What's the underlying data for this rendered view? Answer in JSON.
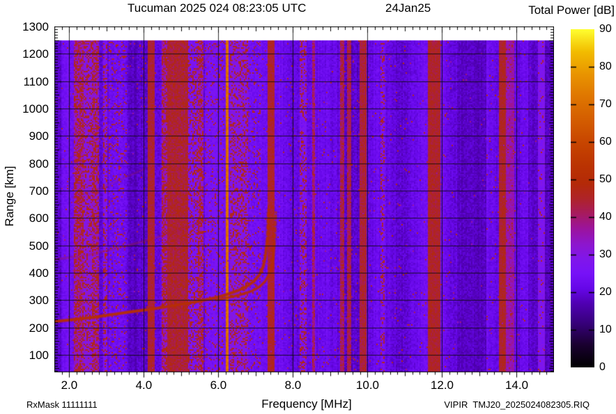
{
  "header": {
    "title": "Tucuman 2025 024 08:23:05 UTC",
    "date": "24Jan25"
  },
  "footer": {
    "rx_mask": "RxMask 11111111",
    "file_id": "VIPIR  TMJ20_2025024082305.RIQ"
  },
  "chart_data": {
    "type": "heatmap",
    "title": "Tucuman 2025 024 08:23:05 UTC",
    "date_annotation": "24Jan25",
    "xlabel": "Frequency [MHz]",
    "ylabel": "Range [km]",
    "x_range_mhz": [
      1.6,
      15.0
    ],
    "y_range_km": [
      36,
      1300
    ],
    "data_max_range_km": 1250,
    "grid": true,
    "x_major_ticks": [
      2,
      4,
      6,
      8,
      10,
      12,
      14
    ],
    "x_tick_labels": [
      "2.0",
      "4.0",
      "6.0",
      "8.0",
      "10.0",
      "12.0",
      "14.0"
    ],
    "x_minor_step_mhz": 0.2,
    "y_major_ticks": [
      100,
      200,
      300,
      400,
      500,
      600,
      700,
      800,
      900,
      1000,
      1100,
      1200,
      1300
    ],
    "y_tick_labels": [
      "100",
      "200",
      "300",
      "400",
      "500",
      "600",
      "700",
      "800",
      "900",
      "1000",
      "1100",
      "1200",
      "1300"
    ],
    "y_minor_step_km": 10,
    "background_noise_db": {
      "base": 21.5,
      "jitter": 2.2
    },
    "colorbar": {
      "title": "Total Power [dB]",
      "min": 0,
      "max": 90,
      "tick_step": 10,
      "tick_values": [
        0,
        10,
        20,
        30,
        40,
        50,
        60,
        70,
        80,
        90
      ],
      "stops": [
        [
          0,
          "#000000"
        ],
        [
          6,
          "#1a0030"
        ],
        [
          12,
          "#38007e"
        ],
        [
          17,
          "#5000b2"
        ],
        [
          21,
          "#6607e8"
        ],
        [
          25,
          "#7712f8"
        ],
        [
          29,
          "#8117ea"
        ],
        [
          33,
          "#8e16cc"
        ],
        [
          37,
          "#9c149c"
        ],
        [
          41,
          "#a71b5e"
        ],
        [
          45,
          "#af2428"
        ],
        [
          49,
          "#b42a08"
        ],
        [
          54,
          "#bb3402"
        ],
        [
          60,
          "#c84600"
        ],
        [
          66,
          "#d45e00"
        ],
        [
          72,
          "#df7600"
        ],
        [
          78,
          "#e99400"
        ],
        [
          84,
          "#f2bc00"
        ],
        [
          90,
          "#ffff30"
        ]
      ]
    },
    "rfi_bands": [
      {
        "f0": 1.6,
        "f1": 1.78,
        "level_db": 19,
        "style": "dark"
      },
      {
        "f0": 2.14,
        "f1": 2.38,
        "level_db": 42,
        "style": "speckle_strong"
      },
      {
        "f0": 2.38,
        "f1": 2.6,
        "level_db": 36,
        "style": "speckle"
      },
      {
        "f0": 2.6,
        "f1": 2.78,
        "level_db": 41,
        "style": "speckle_strong"
      },
      {
        "f0": 2.9,
        "f1": 3.02,
        "level_db": 33,
        "style": "speckle"
      },
      {
        "f0": 3.05,
        "f1": 3.55,
        "level_db": 27,
        "style": "speckle_light"
      },
      {
        "f0": 3.58,
        "f1": 3.82,
        "level_db": 18,
        "style": "dark"
      },
      {
        "f0": 4.1,
        "f1": 4.28,
        "level_db": 45,
        "style": "solid"
      },
      {
        "f0": 4.46,
        "f1": 4.64,
        "level_db": 42,
        "style": "speckle_strong"
      },
      {
        "f0": 4.64,
        "f1": 5.2,
        "level_db": 45,
        "style": "solid_speckle"
      },
      {
        "f0": 5.2,
        "f1": 5.44,
        "level_db": 32,
        "style": "speckle"
      },
      {
        "f0": 5.46,
        "f1": 5.6,
        "level_db": 41,
        "style": "speckle_strong"
      },
      {
        "f0": 5.62,
        "f1": 6.16,
        "level_db": 29,
        "style": "speckle_light"
      },
      {
        "f0": 6.2,
        "f1": 6.27,
        "level_db": 70,
        "style": "line"
      },
      {
        "f0": 6.3,
        "f1": 6.78,
        "level_db": 35,
        "style": "speckle"
      },
      {
        "f0": 6.78,
        "f1": 7.12,
        "level_db": 28,
        "style": "speckle_light"
      },
      {
        "f0": 7.32,
        "f1": 7.5,
        "level_db": 45,
        "style": "solid"
      },
      {
        "f0": 8.18,
        "f1": 8.36,
        "level_db": 32,
        "style": "speckle"
      },
      {
        "f0": 8.5,
        "f1": 8.58,
        "level_db": 38,
        "style": "narrow"
      },
      {
        "f0": 9.26,
        "f1": 9.36,
        "level_db": 41,
        "style": "narrow"
      },
      {
        "f0": 9.46,
        "f1": 9.56,
        "level_db": 41,
        "style": "narrow"
      },
      {
        "f0": 9.78,
        "f1": 9.96,
        "level_db": 44,
        "style": "solid"
      },
      {
        "f0": 10.34,
        "f1": 10.46,
        "level_db": 31,
        "style": "speckle"
      },
      {
        "f0": 11.62,
        "f1": 11.96,
        "level_db": 45,
        "style": "solid"
      },
      {
        "f0": 12.4,
        "f1": 13.18,
        "level_db": 18,
        "style": "dark"
      },
      {
        "f0": 13.52,
        "f1": 13.7,
        "level_db": 45,
        "style": "solid"
      },
      {
        "f0": 13.7,
        "f1": 13.92,
        "level_db": 36,
        "style": "magenta"
      },
      {
        "f0": 14.3,
        "f1": 14.58,
        "level_db": 19,
        "style": "dark"
      },
      {
        "f0": 14.58,
        "f1": 14.76,
        "level_db": 28,
        "style": "band"
      },
      {
        "f0": 14.76,
        "f1": 15.0,
        "level_db": 18,
        "style": "dark"
      }
    ],
    "traces": {
      "o_mode": {
        "level_db": 51,
        "width": 3.4,
        "alpha": 0.95,
        "points": [
          [
            1.6,
            221
          ],
          [
            2.0,
            227
          ],
          [
            2.4,
            233
          ],
          [
            2.8,
            240
          ],
          [
            3.2,
            248
          ],
          [
            3.6,
            256
          ],
          [
            4.0,
            263
          ],
          [
            4.4,
            271
          ],
          [
            4.8,
            280
          ],
          [
            5.2,
            289
          ],
          [
            5.6,
            299
          ],
          [
            5.9,
            308
          ],
          [
            6.2,
            319
          ],
          [
            6.5,
            333
          ],
          [
            6.75,
            349
          ],
          [
            6.95,
            368
          ],
          [
            7.1,
            392
          ],
          [
            7.2,
            422
          ],
          [
            7.26,
            458
          ],
          [
            7.295,
            500
          ],
          [
            7.31,
            515
          ]
        ],
        "dashed_tail": [
          [
            7.31,
            515
          ],
          [
            7.325,
            560
          ],
          [
            7.335,
            600
          ],
          [
            7.345,
            630
          ]
        ]
      },
      "x_mode": {
        "level_db": 51,
        "width": 2.8,
        "alpha": 0.9,
        "points": [
          [
            5.95,
            300
          ],
          [
            6.3,
            310
          ],
          [
            6.6,
            320
          ],
          [
            6.9,
            333
          ],
          [
            7.1,
            348
          ],
          [
            7.25,
            368
          ],
          [
            7.37,
            395
          ],
          [
            7.44,
            428
          ],
          [
            7.48,
            465
          ],
          [
            7.5,
            505
          ]
        ],
        "dashed_tail": [
          [
            7.5,
            505
          ],
          [
            7.52,
            550
          ],
          [
            7.53,
            590
          ],
          [
            7.54,
            620
          ]
        ]
      },
      "second_hop": {
        "level_db": 44,
        "width": 2.6,
        "alpha": 0.28,
        "points": [
          [
            1.6,
            448
          ],
          [
            2.4,
            462
          ],
          [
            3.2,
            486
          ],
          [
            4.0,
            515
          ],
          [
            4.8,
            548
          ],
          [
            5.3,
            572
          ],
          [
            5.7,
            596
          ]
        ]
      },
      "third_hop": {
        "level_db": 44,
        "width": 2.2,
        "alpha": 0.2,
        "points": [
          [
            2.1,
            672
          ],
          [
            2.8,
            706
          ],
          [
            3.5,
            748
          ],
          [
            4.0,
            778
          ]
        ]
      },
      "high_range_echo": {
        "level_db": 44,
        "width": 2.2,
        "alpha": 0.24,
        "points": [
          [
            5.2,
            1110
          ],
          [
            5.6,
            1165
          ],
          [
            5.95,
            1235
          ]
        ]
      }
    }
  }
}
